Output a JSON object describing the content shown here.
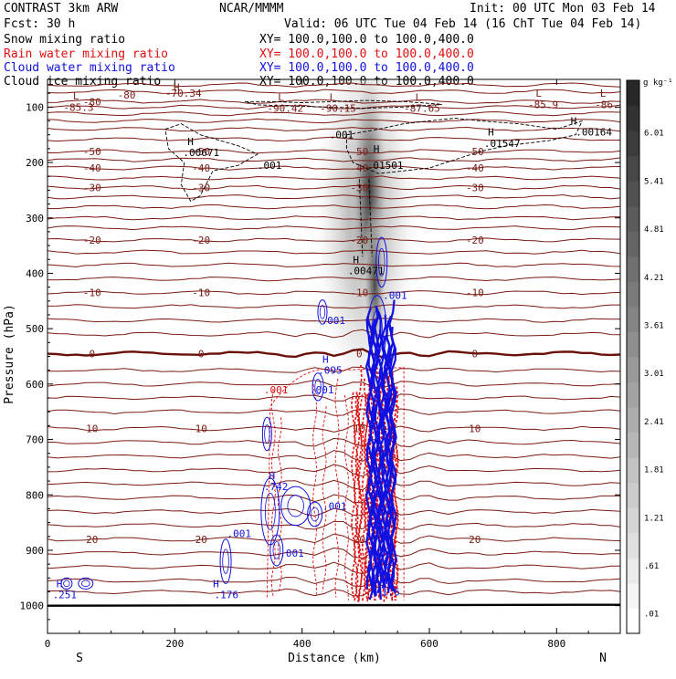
{
  "header": {
    "model": "CONTRAST  3km ARW",
    "org": "NCAR/MMMM",
    "init": "Init: 00 UTC Mon 03 Feb 14",
    "fcst": "Fcst:   30 h",
    "valid": "Valid: 06 UTC Tue 04 Feb 14 (16 ChT Tue 04 Feb 14)"
  },
  "fields": [
    {
      "name": "Snow mixing ratio",
      "xy": "XY= 100.0,100.0 to 100.0,400.0",
      "color": "#000000"
    },
    {
      "name": "Rain water mixing ratio",
      "xy": "XY= 100.0,100.0 to 100.0,400.0",
      "color": "#e01010"
    },
    {
      "name": "Cloud water mixing ratio",
      "xy": "XY= 100.0,100.0 to 100.0,400.0",
      "color": "#1010e0"
    },
    {
      "name": "Cloud ice mixing ratio",
      "xy": "XY= 100.0,100.0 to 100.0,400.0",
      "color": "#000000"
    }
  ],
  "colors": {
    "temp": "#7a1a14",
    "freezing": "#6b0f0a",
    "rain": "#e01010",
    "cloud": "#1010e0",
    "ice": "#000000",
    "ground": "#000000"
  },
  "chart_data": {
    "type": "heatmap",
    "title": "Snow mixing ratio",
    "xlabel": "Distance (km)",
    "ylabel": "Pressure (hPa)",
    "xlim": [
      0,
      900
    ],
    "ylim": [
      1050,
      50
    ],
    "x_ticks": [
      0,
      200,
      400,
      600,
      800
    ],
    "y_ticks": [
      100,
      200,
      300,
      400,
      500,
      600,
      700,
      800,
      900,
      1000
    ],
    "left_end": "S",
    "right_end": "N",
    "colorbar": {
      "unit": "g kg⁻¹",
      "levels": [
        "6.01",
        "5.41",
        "4.81",
        "4.21",
        "3.61",
        "3.01",
        "2.41",
        "1.81",
        "1.21",
        ".61",
        ".01"
      ],
      "min": 0.01,
      "max": 6.61
    },
    "snow_plume": {
      "center_km": 500,
      "core_top_hpa": 110,
      "core_bottom_hpa": 560,
      "max_value": 6.61
    },
    "temperature_isotherms": [
      {
        "value": -80,
        "label": "-80",
        "p": 90
      },
      {
        "value": -50,
        "label": "-50",
        "p": 180
      },
      {
        "value": -40,
        "label": "-40",
        "p": 210
      },
      {
        "value": -30,
        "label": "-30",
        "p": 245
      },
      {
        "value": -20,
        "label": "-20",
        "p": 340
      },
      {
        "value": -10,
        "label": "-10",
        "p": 435
      },
      {
        "value": 0,
        "label": "0",
        "p": 545
      },
      {
        "value": 10,
        "label": "10",
        "p": 680
      },
      {
        "value": 20,
        "label": "20",
        "p": 880
      }
    ],
    "annotations": [
      {
        "text": "L",
        "x": 40,
        "p": 80,
        "color": "#7a1a14"
      },
      {
        "text": "-85.3",
        "x": 25,
        "p": 100,
        "color": "#7a1a14"
      },
      {
        "text": "-80",
        "x": 110,
        "p": 78,
        "color": "#7a1a14"
      },
      {
        "text": "H",
        "x": 198,
        "p": 64,
        "color": "#7a1a14"
      },
      {
        "text": "-70.34",
        "x": 185,
        "p": 75,
        "color": "#7a1a14"
      },
      {
        "text": "L",
        "x": 362,
        "p": 82,
        "color": "#7a1a14"
      },
      {
        "text": "-90.42",
        "x": 345,
        "p": 102,
        "color": "#7a1a14"
      },
      {
        "text": "L",
        "x": 443,
        "p": 82,
        "color": "#7a1a14"
      },
      {
        "text": "-90.15",
        "x": 428,
        "p": 102,
        "color": "#7a1a14"
      },
      {
        "text": "L",
        "x": 578,
        "p": 82,
        "color": "#7a1a14"
      },
      {
        "text": "-87.65",
        "x": 560,
        "p": 102,
        "color": "#7a1a14"
      },
      {
        "text": "L",
        "x": 767,
        "p": 75,
        "color": "#7a1a14"
      },
      {
        "text": "-85.9",
        "x": 755,
        "p": 95,
        "color": "#7a1a14"
      },
      {
        "text": "L",
        "x": 868,
        "p": 75,
        "color": "#7a1a14"
      },
      {
        "text": "-86.",
        "x": 860,
        "p": 95,
        "color": "#7a1a14"
      },
      {
        "text": ".001",
        "x": 443,
        "p": 150,
        "color": "#000000"
      },
      {
        "text": "H",
        "x": 220,
        "p": 162,
        "color": "#000000"
      },
      {
        "text": ".00671",
        "x": 213,
        "p": 182,
        "color": "#000000"
      },
      {
        "text": ".001",
        "x": 330,
        "p": 205,
        "color": "#000000"
      },
      {
        "text": "H",
        "x": 512,
        "p": 175,
        "color": "#000000"
      },
      {
        "text": ".01501",
        "x": 502,
        "p": 205,
        "color": "#000000"
      },
      {
        "text": "H",
        "x": 692,
        "p": 145,
        "color": "#000000"
      },
      {
        "text": ".01547",
        "x": 686,
        "p": 165,
        "color": "#000000"
      },
      {
        "text": "H",
        "x": 822,
        "p": 125,
        "color": "#000000"
      },
      {
        "text": ".00164",
        "x": 830,
        "p": 145,
        "color": "#000000"
      },
      {
        "text": "H",
        "x": 480,
        "p": 375,
        "color": "#000000"
      },
      {
        "text": ".00471",
        "x": 472,
        "p": 395,
        "color": "#000000"
      },
      {
        "text": ".001",
        "x": 527,
        "p": 440,
        "color": "#1010e0"
      },
      {
        "text": ".001",
        "x": 430,
        "p": 485,
        "color": "#1010e0"
      },
      {
        "text": "H",
        "x": 432,
        "p": 555,
        "color": "#1010e0"
      },
      {
        "text": ".095",
        "x": 425,
        "p": 575,
        "color": "#1010e0"
      },
      {
        "text": ".001",
        "x": 340,
        "p": 610,
        "color": "#e01010"
      },
      {
        "text": ".001",
        "x": 412,
        "p": 610,
        "color": "#1010e0"
      },
      {
        "text": "H",
        "x": 348,
        "p": 765,
        "color": "#1010e0"
      },
      {
        "text": ".742",
        "x": 340,
        "p": 785,
        "color": "#1010e0"
      },
      {
        "text": ".001",
        "x": 432,
        "p": 820,
        "color": "#1010e0"
      },
      {
        "text": ".001",
        "x": 282,
        "p": 870,
        "color": "#1010e0"
      },
      {
        "text": ".001",
        "x": 365,
        "p": 905,
        "color": "#1010e0"
      },
      {
        "text": "H",
        "x": 14,
        "p": 960,
        "color": "#1010e0"
      },
      {
        "text": ".251",
        "x": 8,
        "p": 980,
        "color": "#1010e0"
      },
      {
        "text": "H",
        "x": 260,
        "p": 960,
        "color": "#1010e0"
      },
      {
        "text": ".176",
        "x": 262,
        "p": 980,
        "color": "#1010e0"
      },
      {
        "text": "1.6",
        "x": 525,
        "p": 975,
        "color": "#1010e0"
      }
    ],
    "ground_pressure_hpa": 1000
  }
}
